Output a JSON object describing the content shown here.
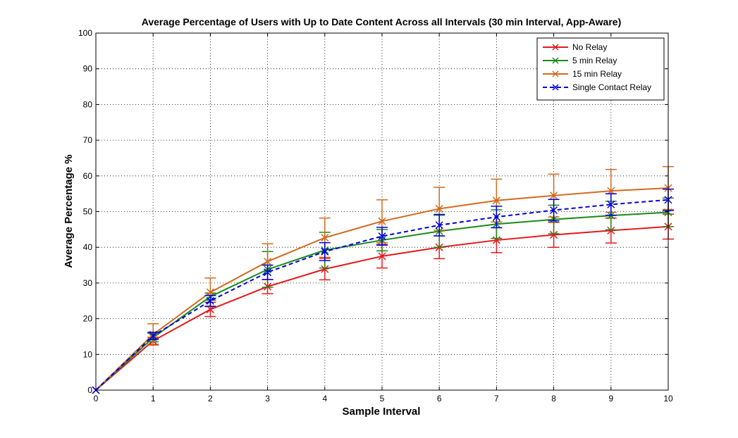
{
  "chart_data": {
    "type": "line",
    "title": "Average Percentage of Users with Up to Date Content Across all Intervals (30 min Interval, App-Aware)",
    "xlabel": "Sample Interval",
    "ylabel": "Average Percentage %",
    "xlim": [
      0,
      10
    ],
    "ylim": [
      0,
      100
    ],
    "x_ticks": [
      0,
      1,
      2,
      3,
      4,
      5,
      6,
      7,
      8,
      9,
      10
    ],
    "y_ticks": [
      0,
      10,
      20,
      30,
      40,
      50,
      60,
      70,
      80,
      90,
      100
    ],
    "grid": true,
    "legend_position": "top-right",
    "x": [
      0,
      1,
      2,
      3,
      4,
      5,
      6,
      7,
      8,
      9,
      10
    ],
    "series": [
      {
        "name": "No Relay",
        "color": "#e41a1c",
        "line_style": "solid",
        "marker": "x",
        "values": [
          0,
          13.8,
          22.6,
          29.0,
          33.9,
          37.5,
          40.0,
          42.0,
          43.5,
          44.7,
          45.8
        ],
        "error": [
          0,
          1.0,
          2.0,
          2.0,
          3.0,
          3.3,
          3.2,
          3.5,
          3.5,
          3.5,
          3.5
        ]
      },
      {
        "name": "5 min Relay",
        "color": "#1a8a1a",
        "line_style": "solid",
        "marker": "x",
        "values": [
          0,
          14.7,
          26.2,
          33.8,
          39.2,
          42.0,
          44.5,
          46.5,
          47.8,
          48.9,
          49.8
        ],
        "error": [
          0,
          1.2,
          1.0,
          5.0,
          5.0,
          3.0,
          4.5,
          4.0,
          4.0,
          4.0,
          4.0
        ]
      },
      {
        "name": "15 min Relay",
        "color": "#d2691e",
        "line_style": "solid",
        "marker": "x",
        "values": [
          0,
          15.6,
          27.4,
          36.0,
          42.7,
          47.3,
          50.8,
          53.1,
          54.5,
          55.8,
          56.6
        ],
        "error": [
          0,
          3.0,
          4.0,
          5.0,
          5.5,
          6.0,
          6.0,
          6.0,
          6.0,
          6.0,
          6.0
        ]
      },
      {
        "name": "Single Contact Relay",
        "color": "#0000dd",
        "line_style": "dashed",
        "marker": "x",
        "values": [
          0,
          15.2,
          25.0,
          33.0,
          38.8,
          43.1,
          46.2,
          48.5,
          50.4,
          52.0,
          53.3
        ],
        "error": [
          0,
          1.0,
          1.5,
          2.0,
          2.5,
          2.5,
          3.0,
          3.0,
          3.0,
          3.0,
          3.0
        ]
      }
    ]
  }
}
